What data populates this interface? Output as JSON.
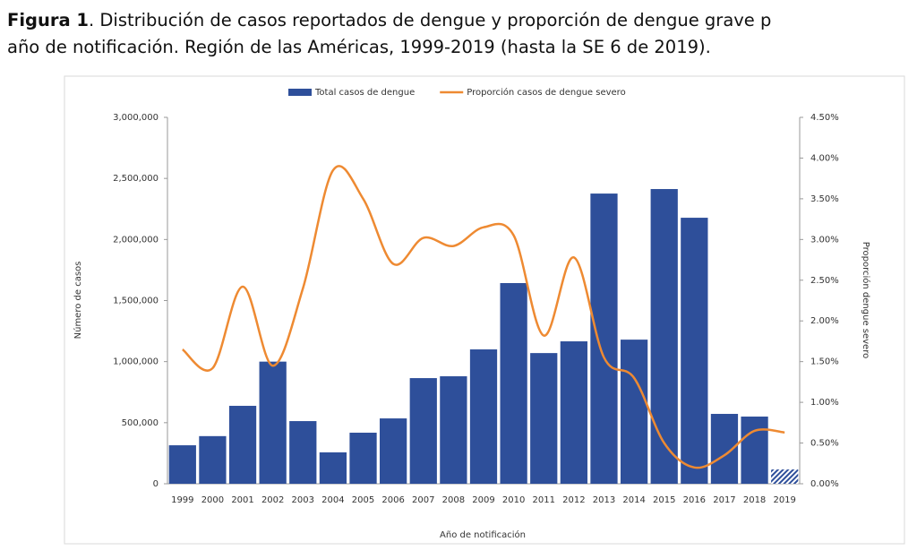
{
  "caption": {
    "label": "Figura 1",
    "line1": ". Distribución de casos reportados de dengue y proporción de dengue grave p",
    "line2": "año de notificación. Región de las Américas, 1999-2019 (hasta la SE 6 de 2019)."
  },
  "chart_data": {
    "type": "combo",
    "x_label": "Año de notificación",
    "y_label": "Número de casos",
    "y2_label": "Proporción dengue severo",
    "categories": [
      "1999",
      "2000",
      "2001",
      "2002",
      "2003",
      "2004",
      "2005",
      "2006",
      "2007",
      "2008",
      "2009",
      "2010",
      "2011",
      "2012",
      "2013",
      "2014",
      "2015",
      "2016",
      "2017",
      "2018",
      "2019"
    ],
    "series": [
      {
        "name": "Total casos de dengue",
        "type": "bar",
        "color": "#2e4f9a",
        "hatched": [
          20
        ],
        "values": [
          315000,
          390000,
          638000,
          1000000,
          513000,
          257000,
          418000,
          535000,
          865000,
          880000,
          1100000,
          1643000,
          1070000,
          1166000,
          2376000,
          1180000,
          2413000,
          2178000,
          572000,
          550000,
          117000
        ]
      },
      {
        "name": "Proporción casos de dengue severo",
        "type": "line",
        "axis": "y2",
        "color": "#ee8a32",
        "values": [
          1.65,
          1.42,
          2.42,
          1.45,
          2.4,
          3.85,
          3.5,
          2.7,
          3.02,
          2.92,
          3.15,
          3.05,
          1.82,
          2.78,
          1.55,
          1.3,
          0.5,
          0.2,
          0.35,
          0.65,
          0.63
        ]
      }
    ],
    "ylim": [
      0,
      3000000
    ],
    "yticks": [
      0,
      {
        "value": 500000,
        "label": "500,000"
      },
      {
        "value": 1000000,
        "label": "1,000,000"
      },
      {
        "value": 1500000,
        "label": "1,500,000"
      },
      {
        "value": 2000000,
        "label": "2,000,000"
      },
      {
        "value": 2500000,
        "label": "2,500,000"
      },
      {
        "value": 3000000,
        "label": "3,000,000"
      }
    ],
    "y2lim": [
      0,
      4.5
    ],
    "y2ticks": [
      {
        "value": 0,
        "label": "0.00%"
      },
      {
        "value": 0.5,
        "label": "0.50%"
      },
      {
        "value": 1,
        "label": "1.00%"
      },
      {
        "value": 1.5,
        "label": "1.50%"
      },
      {
        "value": 2,
        "label": "2.00%"
      },
      {
        "value": 2.5,
        "label": "2.50%"
      },
      {
        "value": 3,
        "label": "3.00%"
      },
      {
        "value": 3.5,
        "label": "3.50%"
      },
      {
        "value": 4,
        "label": "4.00%"
      },
      {
        "value": 4.5,
        "label": "4.50%"
      }
    ],
    "legend": "top"
  }
}
